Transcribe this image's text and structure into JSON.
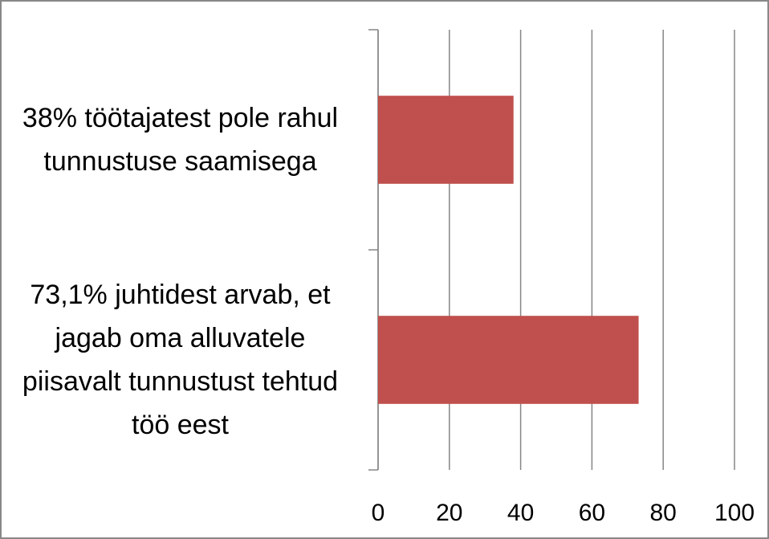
{
  "chart_data": {
    "type": "bar",
    "orientation": "horizontal",
    "categories": [
      "38% töötajatest pole rahul tunnustuse saamisega",
      "73,1% juhtidest arvab, et jagab oma alluvatele piisavalt tunnustust tehtud töö eest"
    ],
    "values": [
      38,
      73.1
    ],
    "color": "#c0504d",
    "xlim": [
      0,
      100
    ],
    "xticks": [
      0,
      20,
      40,
      60,
      80,
      100
    ],
    "grid": true
  }
}
